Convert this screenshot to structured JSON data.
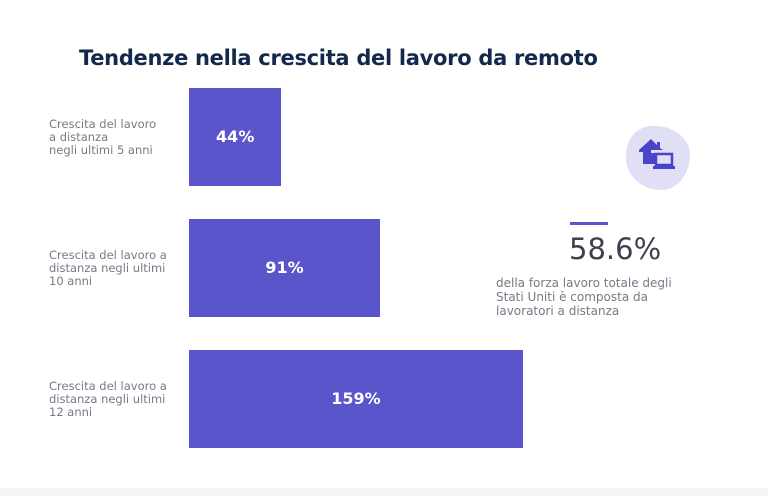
{
  "chart_data": {
    "type": "bar",
    "orientation": "horizontal",
    "title": "Tendenze nella crescita del lavoro da remoto",
    "categories": [
      [
        "Crescita del lavoro",
        "a distanza",
        "negli ultimi 5 anni"
      ],
      [
        "Crescita del lavoro a",
        "distanza negli ultimi",
        "10 anni"
      ],
      [
        "Crescita del lavoro a",
        "distanza negli ultimi",
        "12 anni"
      ]
    ],
    "values": [
      44,
      91,
      159
    ],
    "data_labels": [
      "44%",
      "91%",
      "159%"
    ],
    "unit": "%",
    "bar_color": "#5b55cc",
    "grid": false
  },
  "callout": {
    "icon": "home-laptop-icon",
    "value": "58.6%",
    "description": [
      "della forza lavoro totale degli",
      "Stati Uniti è composta da",
      "lavoratori a distanza"
    ],
    "accent": "#5b55cc"
  }
}
